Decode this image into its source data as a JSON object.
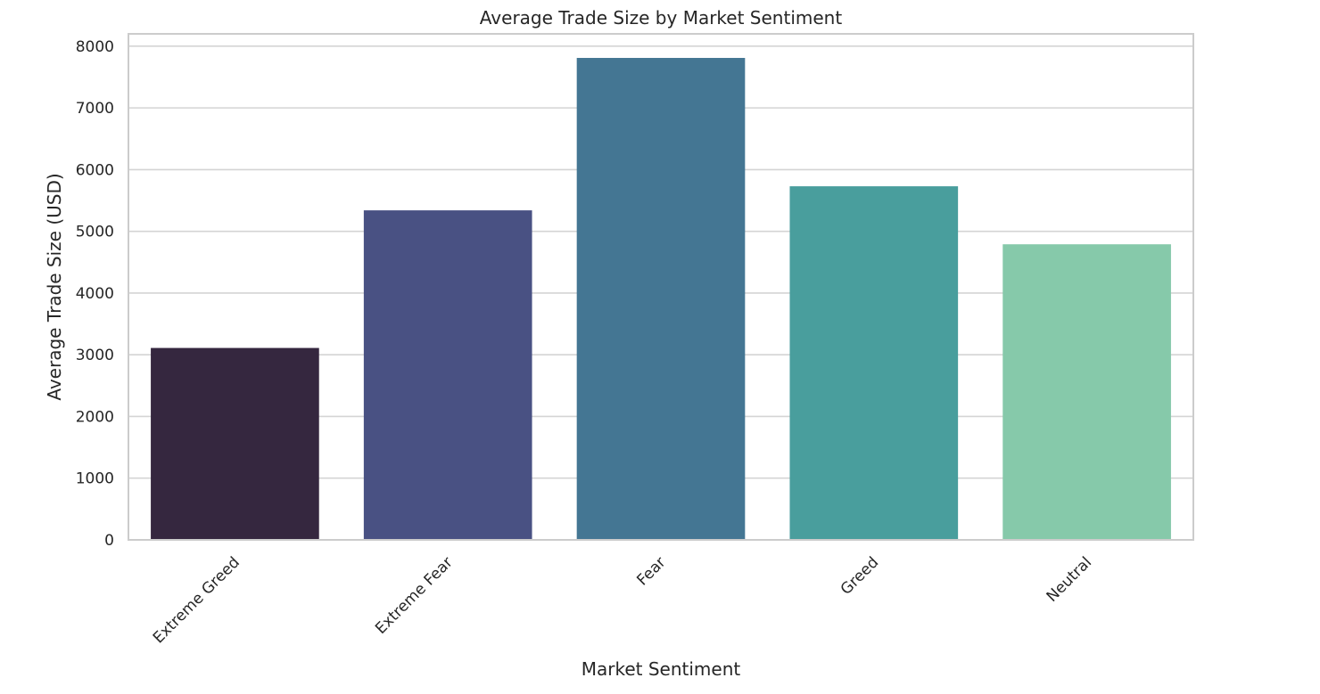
{
  "chart_data": {
    "type": "bar",
    "title": "Average Trade Size by Market Sentiment",
    "xlabel": "Market Sentiment",
    "ylabel": "Average Trade Size (USD)",
    "categories": [
      "Extreme Greed",
      "Extreme Fear",
      "Fear",
      "Greed",
      "Neutral"
    ],
    "values": [
      3110,
      5340,
      7810,
      5730,
      4790
    ],
    "colors": [
      "#35273f",
      "#495183",
      "#447693",
      "#499e9d",
      "#86c9aa"
    ],
    "ylim": [
      0,
      8200
    ],
    "yticks": [
      0,
      1000,
      2000,
      3000,
      4000,
      5000,
      6000,
      7000,
      8000
    ],
    "grid": "horizontal",
    "legend": "none"
  }
}
